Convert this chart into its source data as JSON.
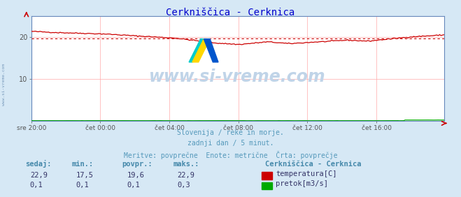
{
  "title": "Cerkniščica - Cerknica",
  "title_color": "#0000cc",
  "bg_color": "#d6e8f5",
  "plot_bg_color": "#ffffff",
  "grid_color": "#ffaaaa",
  "watermark_text": "www.si-vreme.com",
  "watermark_color": "#c0d4e8",
  "left_label": "www.si-vreme.com",
  "subtitle_lines": [
    "Slovenija / reke in morje.",
    "zadnji dan / 5 minut.",
    "Meritve: povprečne  Enote: metrične  Črta: povprečje"
  ],
  "subtitle_color": "#5599bb",
  "xlabel_ticks": [
    "sre 20:00",
    "čet 00:00",
    "čet 04:00",
    "čet 08:00",
    "čet 12:00",
    "čet 16:00"
  ],
  "xlabel_tick_positions": [
    0,
    48,
    96,
    144,
    192,
    240
  ],
  "total_points": 288,
  "ylim": [
    0,
    25
  ],
  "yticks": [
    10,
    20
  ],
  "avg_line_value": 19.6,
  "avg_line_color": "#cc0000",
  "temp_color": "#cc0000",
  "flow_color": "#00aa00",
  "legend_title": "Cerkniščica - Cerknica",
  "legend_label1": "temperatura[C]",
  "legend_label2": "pretok[m3/s]",
  "legend_color1": "#cc0000",
  "legend_color2": "#00aa00",
  "table_headers": [
    "sedaj:",
    "min.:",
    "povpr.:",
    "maks.:"
  ],
  "table_row1": [
    "22,9",
    "17,5",
    "19,6",
    "22,9"
  ],
  "table_row2": [
    "0,1",
    "0,1",
    "0,1",
    "0,3"
  ],
  "table_color": "#4488aa",
  "value_color": "#333366",
  "spine_color": "#6688bb",
  "arrow_color": "#cc0000"
}
